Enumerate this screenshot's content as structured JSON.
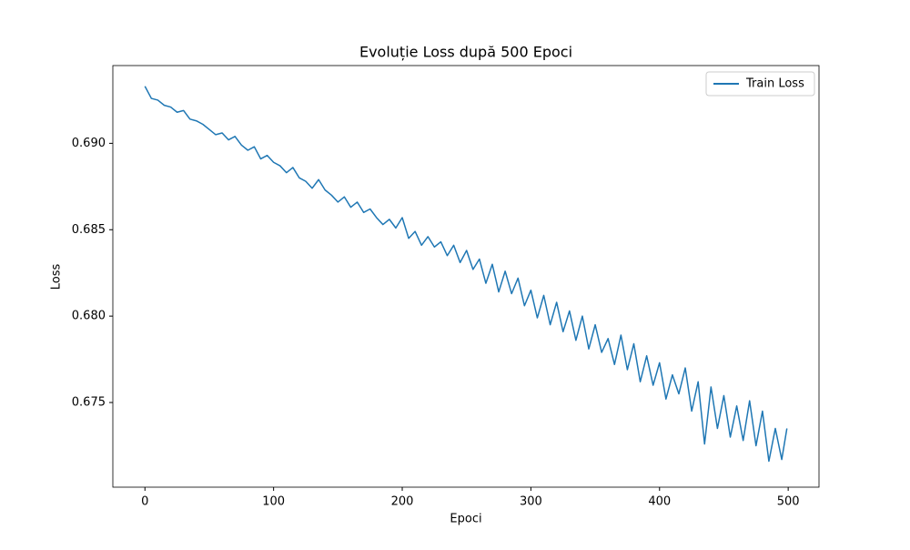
{
  "chart_data": {
    "type": "line",
    "title": "Evoluție Loss după 500 Epoci",
    "x_label": "Epoci",
    "y_label": "Loss",
    "x": [
      0,
      5,
      10,
      15,
      20,
      25,
      30,
      35,
      40,
      45,
      50,
      55,
      60,
      65,
      70,
      75,
      80,
      85,
      90,
      95,
      100,
      105,
      110,
      115,
      120,
      125,
      130,
      135,
      140,
      145,
      150,
      155,
      160,
      165,
      170,
      175,
      180,
      185,
      190,
      195,
      200,
      205,
      210,
      215,
      220,
      225,
      230,
      235,
      240,
      245,
      250,
      255,
      260,
      265,
      270,
      275,
      280,
      285,
      290,
      295,
      300,
      305,
      310,
      315,
      320,
      325,
      330,
      335,
      340,
      345,
      350,
      355,
      360,
      365,
      370,
      375,
      380,
      385,
      390,
      395,
      400,
      405,
      410,
      415,
      420,
      425,
      430,
      435,
      440,
      445,
      450,
      455,
      460,
      465,
      470,
      475,
      480,
      485,
      490,
      495,
      499
    ],
    "series": [
      {
        "name": "Train Loss",
        "color": "#1f77b4",
        "values": [
          0.6933,
          0.6926,
          0.6925,
          0.6922,
          0.6921,
          0.6918,
          0.6919,
          0.6914,
          0.6913,
          0.6911,
          0.6908,
          0.6905,
          0.6906,
          0.6902,
          0.6904,
          0.6899,
          0.6896,
          0.6898,
          0.6891,
          0.6893,
          0.6889,
          0.6887,
          0.6883,
          0.6886,
          0.688,
          0.6878,
          0.6874,
          0.6879,
          0.6873,
          0.687,
          0.6866,
          0.6869,
          0.6863,
          0.6866,
          0.686,
          0.6862,
          0.6857,
          0.6853,
          0.6856,
          0.6851,
          0.6857,
          0.6845,
          0.6849,
          0.6841,
          0.6846,
          0.684,
          0.6843,
          0.6835,
          0.6841,
          0.6831,
          0.6838,
          0.6827,
          0.6833,
          0.6819,
          0.683,
          0.6814,
          0.6826,
          0.6813,
          0.6822,
          0.6806,
          0.6815,
          0.6799,
          0.6812,
          0.6795,
          0.6808,
          0.6791,
          0.6803,
          0.6786,
          0.68,
          0.6781,
          0.6795,
          0.6779,
          0.6787,
          0.6772,
          0.6789,
          0.6769,
          0.6784,
          0.6762,
          0.6777,
          0.676,
          0.6773,
          0.6752,
          0.6766,
          0.6755,
          0.677,
          0.6745,
          0.6762,
          0.6726,
          0.6759,
          0.6735,
          0.6754,
          0.673,
          0.6748,
          0.6728,
          0.6751,
          0.6725,
          0.6745,
          0.6716,
          0.6735,
          0.6717,
          0.6735
        ]
      }
    ],
    "xlim": [
      -24.95,
      523.95
    ],
    "xticks": [
      0,
      100,
      200,
      300,
      400,
      500
    ],
    "ylim": [
      0.6701,
      0.6945
    ],
    "yticks": [
      0.675,
      {
        "value": 0.68,
        "label": "0.680"
      },
      0.685,
      {
        "value": 0.69,
        "label": "0.690"
      }
    ],
    "legend": "upper right",
    "grid": false
  }
}
